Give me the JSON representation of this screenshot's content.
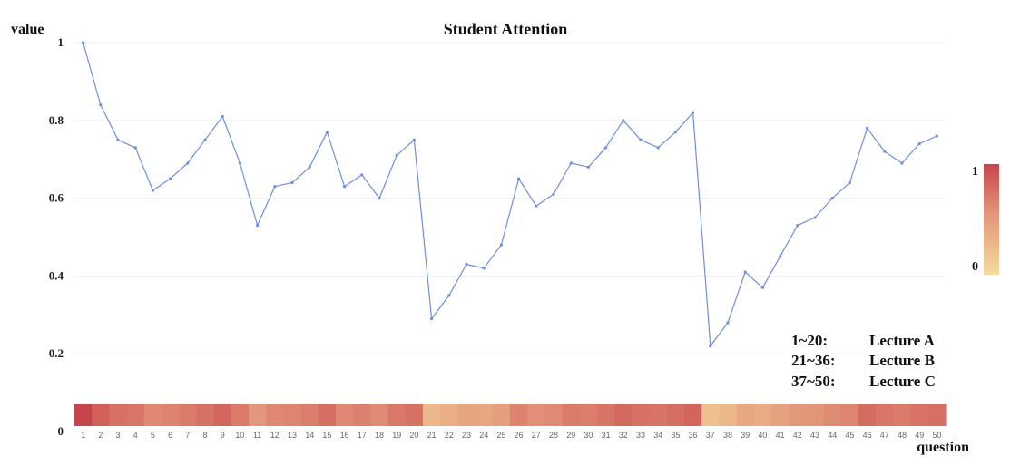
{
  "chart_data": {
    "type": "line",
    "title": "Student Attention",
    "ylabel": "value",
    "xlabel": "question",
    "ylim": [
      0,
      1
    ],
    "yticks": [
      "0",
      "0.2",
      "0.4",
      "0.6",
      "0.8",
      "1"
    ],
    "x": [
      "1",
      "2",
      "3",
      "4",
      "5",
      "6",
      "7",
      "8",
      "9",
      "10",
      "11",
      "12",
      "13",
      "14",
      "15",
      "16",
      "17",
      "18",
      "19",
      "20",
      "21",
      "22",
      "23",
      "24",
      "25",
      "26",
      "27",
      "28",
      "29",
      "30",
      "31",
      "32",
      "33",
      "34",
      "35",
      "36",
      "37",
      "38",
      "39",
      "40",
      "41",
      "42",
      "43",
      "44",
      "45",
      "46",
      "47",
      "48",
      "49",
      "50"
    ],
    "series": [
      {
        "values": [
          1.0,
          0.84,
          0.75,
          0.73,
          0.62,
          0.65,
          0.69,
          0.75,
          0.81,
          0.69,
          0.53,
          0.63,
          0.64,
          0.68,
          0.77,
          0.63,
          0.66,
          0.6,
          0.71,
          0.75,
          0.29,
          0.35,
          0.43,
          0.42,
          0.48,
          0.65,
          0.58,
          0.61,
          0.69,
          0.68,
          0.73,
          0.8,
          0.75,
          0.73,
          0.77,
          0.82,
          0.22,
          0.28,
          0.41,
          0.37,
          0.45,
          0.53,
          0.55,
          0.6,
          0.64,
          0.78,
          0.72,
          0.69,
          0.74,
          0.76
        ],
        "color": "#6f8fdc"
      }
    ],
    "heatmap_strip": {
      "values": [
        1.0,
        0.84,
        0.75,
        0.73,
        0.62,
        0.65,
        0.69,
        0.75,
        0.81,
        0.69,
        0.53,
        0.63,
        0.64,
        0.68,
        0.77,
        0.63,
        0.66,
        0.6,
        0.71,
        0.75,
        0.29,
        0.35,
        0.43,
        0.42,
        0.48,
        0.65,
        0.58,
        0.61,
        0.69,
        0.68,
        0.73,
        0.8,
        0.75,
        0.73,
        0.77,
        0.82,
        0.22,
        0.28,
        0.41,
        0.37,
        0.45,
        0.53,
        0.55,
        0.6,
        0.64,
        0.78,
        0.72,
        0.69,
        0.74,
        0.76
      ],
      "color_low": "#f5dc9c",
      "color_high": "#c8444b"
    },
    "colorbar": {
      "max_label": "1",
      "min_label": "0"
    },
    "annotations": [
      {
        "range": "1~20:",
        "label": "Lecture A"
      },
      {
        "range": "21~36:",
        "label": "Lecture B"
      },
      {
        "range": "37~50:",
        "label": "Lecture C"
      }
    ],
    "grid": true
  }
}
